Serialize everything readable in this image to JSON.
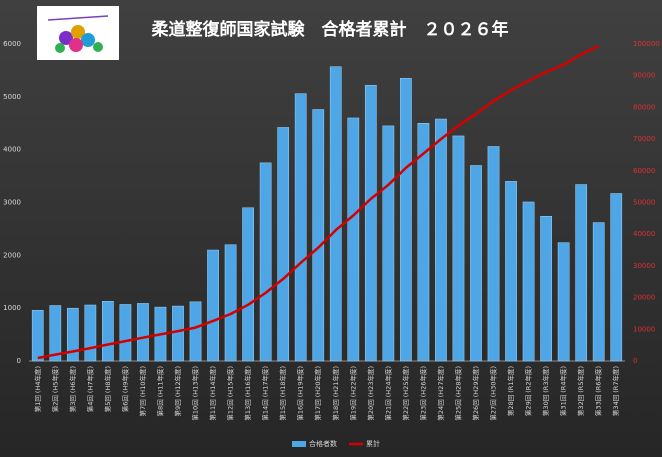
{
  "chart_data": {
    "type": "bar",
    "title": "柔道整復師国家試験　合格者累計　２０２６年",
    "categories": [
      "第1回 (H4年度)",
      "第2回 (H5年度)",
      "第3回 (H6年度)",
      "第4回 (H7年度)",
      "第5回 (H8年度)",
      "第6回 (H9年度)",
      "第7回 (H10年度)",
      "第8回 (H11年度)",
      "第9回 (H12年度)",
      "第10回 (H13年度)",
      "第11回 (H14年度)",
      "第12回 (H15年度)",
      "第13回 (H16年度)",
      "第14回 (H17年度)",
      "第15回 (H18年度)",
      "第16回 (H19年度)",
      "第17回 (H20年度)",
      "第18回 (H21年度)",
      "第19回 (H22年度)",
      "第20回 (H23年度)",
      "第21回 (H24年度)",
      "第22回 (H25年度)",
      "第23回 (H26年度)",
      "第24回 (H27年度)",
      "第25回 (H28年度)",
      "第26回 (H29年度)",
      "第27回 (H30年度)",
      "第28回 (R1年度)",
      "第29回 (R2年度)",
      "第30回 (R3年度)",
      "第31回 (R4年度)",
      "第32回 (R5年度)",
      "第33回 (R6年度)",
      "第34回 (R7年度)"
    ],
    "series": [
      {
        "name": "合格者数",
        "type": "bar",
        "color": "#4ea6e6",
        "values": [
          960,
          1050,
          1000,
          1060,
          1130,
          1070,
          1090,
          1020,
          1040,
          1120,
          2100,
          2200,
          2900,
          3750,
          4420,
          5060,
          4760,
          5570,
          4600,
          5220,
          4450,
          5350,
          4500,
          4580,
          4260,
          3700,
          4060,
          3400,
          3010,
          2740,
          2240,
          3340,
          2620,
          3170
        ]
      },
      {
        "name": "累計",
        "type": "line",
        "axis": "y2",
        "color": "#d40000",
        "values": [
          960,
          2010,
          3010,
          4070,
          5200,
          6270,
          7360,
          8380,
          9420,
          10540,
          12640,
          14840,
          17740,
          21490,
          25910,
          30970,
          35730,
          41300,
          45900,
          51120,
          55570,
          60920,
          65420,
          70000,
          74260,
          77960,
          82020,
          85420,
          88430,
          91170,
          93410,
          96750,
          99370,
          null
        ]
      }
    ],
    "ylim": [
      0,
      6000
    ],
    "yticks": [
      0,
      1000,
      2000,
      3000,
      4000,
      5000,
      6000
    ],
    "y2lim": [
      0,
      100000
    ],
    "y2ticks": [
      0,
      10000,
      20000,
      30000,
      40000,
      50000,
      60000,
      70000,
      80000,
      90000,
      100000
    ],
    "legend": "bottom"
  }
}
